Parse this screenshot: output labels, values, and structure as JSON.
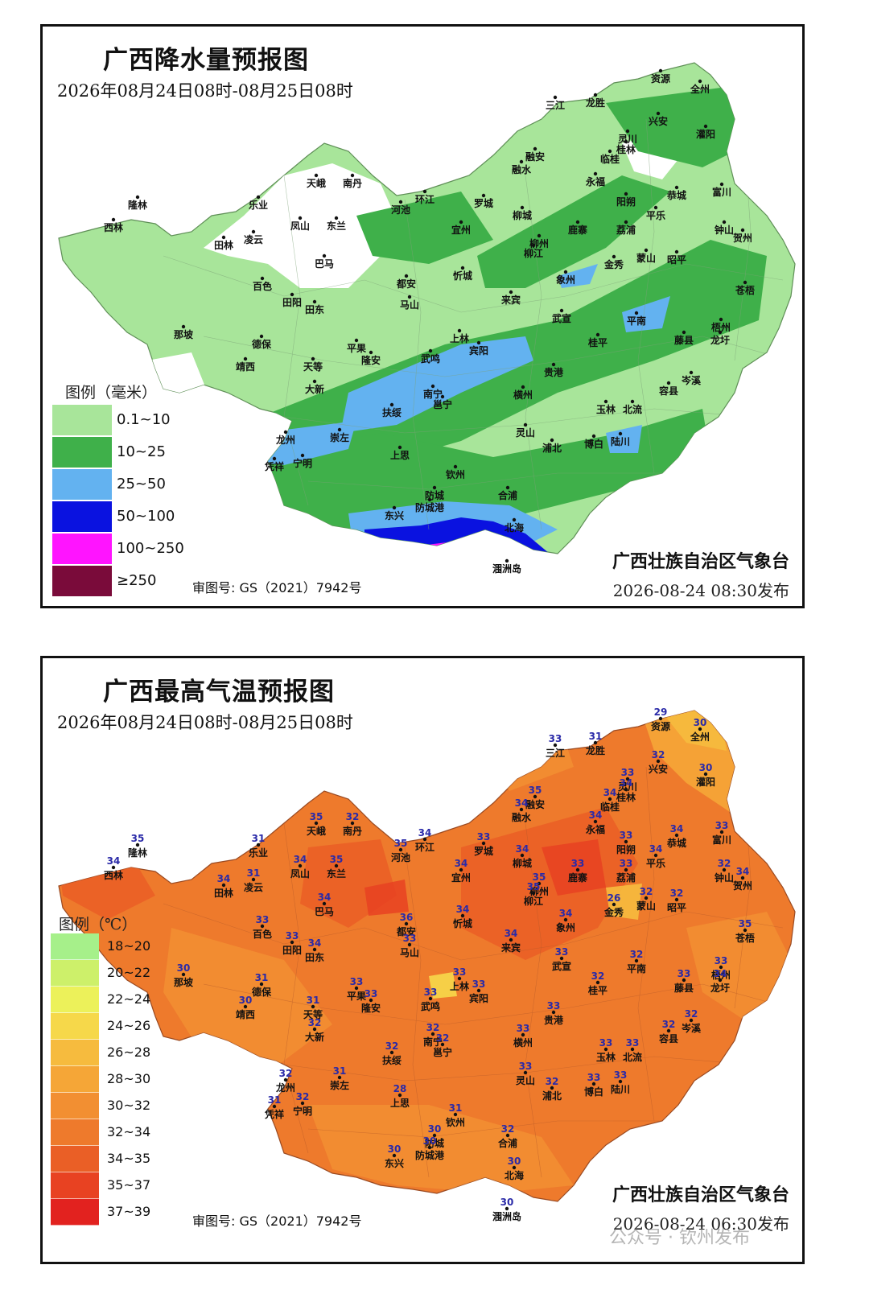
{
  "precip_map": {
    "title": "广西降水量预报图",
    "period": "2026年08月24日08时-08月25日08时",
    "legend_title": "图例（毫米）",
    "legend": [
      {
        "label": "0.1~10",
        "color": "#a8e59a"
      },
      {
        "label": "10~25",
        "color": "#3fb04a"
      },
      {
        "label": "25~50",
        "color": "#63b2f0"
      },
      {
        "label": "50~100",
        "color": "#0a12e0"
      },
      {
        "label": "100~250",
        "color": "#ff14ff"
      },
      {
        "label": "≥250",
        "color": "#7a0b3a"
      }
    ],
    "review_no": "审图号: GS（2021）7942号",
    "issuer": "广西壮族自治区气象台",
    "issued": "2026-08-24  08:30发布"
  },
  "temp_map": {
    "title": "广西最高气温预报图",
    "period": "2026年08月24日08时-08月25日08时",
    "legend_title": "图例（℃）",
    "legend": [
      {
        "label": "18~20",
        "color": "#a6f08a"
      },
      {
        "label": "20~22",
        "color": "#cdf06a"
      },
      {
        "label": "22~24",
        "color": "#ecf15a"
      },
      {
        "label": "24~26",
        "color": "#f6d84a"
      },
      {
        "label": "26~28",
        "color": "#f6bb3e"
      },
      {
        "label": "28~30",
        "color": "#f5a637"
      },
      {
        "label": "30~32",
        "color": "#f28f32"
      },
      {
        "label": "32~34",
        "color": "#ee7a2c"
      },
      {
        "label": "34~35",
        "color": "#ea5f26"
      },
      {
        "label": "35~37",
        "color": "#e84222"
      },
      {
        "label": "37~39",
        "color": "#e2221f"
      }
    ],
    "review_no": "审图号: GS（2021）7942号",
    "issuer": "广西壮族自治区气象台",
    "issued": "2026-08-24  06:30发布",
    "watermark": "公众号 · 钦州发布"
  },
  "cities": [
    {
      "name": "资源"
    },
    {
      "name": "全州"
    },
    {
      "name": "三江"
    },
    {
      "name": "龙胜"
    },
    {
      "name": "兴安"
    },
    {
      "name": "灌阳"
    },
    {
      "name": "灵川"
    },
    {
      "name": "桂林"
    },
    {
      "name": "临桂"
    },
    {
      "name": "融安"
    },
    {
      "name": "融水"
    },
    {
      "name": "永福"
    },
    {
      "name": "天峨"
    },
    {
      "name": "南丹"
    },
    {
      "name": "环江"
    },
    {
      "name": "罗城"
    },
    {
      "name": "富川"
    },
    {
      "name": "恭城"
    },
    {
      "name": "隆林"
    },
    {
      "name": "乐业"
    },
    {
      "name": "河池"
    },
    {
      "name": "阳朔"
    },
    {
      "name": "西林"
    },
    {
      "name": "凤山"
    },
    {
      "name": "东兰"
    },
    {
      "name": "宜州"
    },
    {
      "name": "柳城"
    },
    {
      "name": "鹿寨"
    },
    {
      "name": "荔浦"
    },
    {
      "name": "平乐"
    },
    {
      "name": "钟山"
    },
    {
      "name": "贺州"
    },
    {
      "name": "田林"
    },
    {
      "name": "凌云"
    },
    {
      "name": "柳州"
    },
    {
      "name": "巴马"
    },
    {
      "name": "柳江"
    },
    {
      "name": "金秀"
    },
    {
      "name": "蒙山"
    },
    {
      "name": "昭平"
    },
    {
      "name": "百色"
    },
    {
      "name": "都安"
    },
    {
      "name": "忻城"
    },
    {
      "name": "象州"
    },
    {
      "name": "苍梧"
    },
    {
      "name": "田阳"
    },
    {
      "name": "田东"
    },
    {
      "name": "马山"
    },
    {
      "name": "来宾"
    },
    {
      "name": "武宣"
    },
    {
      "name": "平南"
    },
    {
      "name": "那坡"
    },
    {
      "name": "德保"
    },
    {
      "name": "平果"
    },
    {
      "name": "上林"
    },
    {
      "name": "宾阳"
    },
    {
      "name": "桂平"
    },
    {
      "name": "藤县"
    },
    {
      "name": "梧州"
    },
    {
      "name": "龙圩"
    },
    {
      "name": "靖西"
    },
    {
      "name": "隆安"
    },
    {
      "name": "武鸣"
    },
    {
      "name": "天等"
    },
    {
      "name": "贵港"
    },
    {
      "name": "岑溪"
    },
    {
      "name": "大新"
    },
    {
      "name": "南宁"
    },
    {
      "name": "邕宁"
    },
    {
      "name": "横州"
    },
    {
      "name": "容县"
    },
    {
      "name": "扶绥"
    },
    {
      "name": "玉林"
    },
    {
      "name": "北流"
    },
    {
      "name": "龙州"
    },
    {
      "name": "崇左"
    },
    {
      "name": "灵山"
    },
    {
      "name": "浦北"
    },
    {
      "name": "博白"
    },
    {
      "name": "陆川"
    },
    {
      "name": "凭祥"
    },
    {
      "name": "宁明"
    },
    {
      "name": "上思"
    },
    {
      "name": "钦州"
    },
    {
      "name": "防城"
    },
    {
      "name": "合浦"
    },
    {
      "name": "东兴"
    },
    {
      "name": "防城港"
    },
    {
      "name": "北海"
    },
    {
      "name": "涠洲岛"
    }
  ],
  "temp_values": [
    {
      "v": "29"
    },
    {
      "v": "30"
    },
    {
      "v": "33"
    },
    {
      "v": "31"
    },
    {
      "v": "32"
    },
    {
      "v": "30"
    },
    {
      "v": "33"
    },
    {
      "v": "34"
    },
    {
      "v": "34"
    },
    {
      "v": "35"
    },
    {
      "v": "34"
    },
    {
      "v": "34"
    },
    {
      "v": "35"
    },
    {
      "v": "32"
    },
    {
      "v": "34"
    },
    {
      "v": "33"
    },
    {
      "v": "33"
    },
    {
      "v": "34"
    },
    {
      "v": "35"
    },
    {
      "v": "31"
    },
    {
      "v": "35"
    },
    {
      "v": "33"
    },
    {
      "v": "34"
    },
    {
      "v": "34"
    },
    {
      "v": "35"
    },
    {
      "v": "34"
    },
    {
      "v": "34"
    },
    {
      "v": "33"
    },
    {
      "v": "33"
    },
    {
      "v": "34"
    },
    {
      "v": "32"
    },
    {
      "v": "34"
    },
    {
      "v": "34"
    },
    {
      "v": "31"
    },
    {
      "v": "35"
    },
    {
      "v": "34"
    },
    {
      "v": "35"
    },
    {
      "v": "26"
    },
    {
      "v": "32"
    },
    {
      "v": "32"
    },
    {
      "v": "33"
    },
    {
      "v": "36"
    },
    {
      "v": "34"
    },
    {
      "v": "34"
    },
    {
      "v": "35"
    },
    {
      "v": "33"
    },
    {
      "v": "34"
    },
    {
      "v": "33"
    },
    {
      "v": "34"
    },
    {
      "v": "33"
    },
    {
      "v": "32"
    },
    {
      "v": "30"
    },
    {
      "v": "31"
    },
    {
      "v": "33"
    },
    {
      "v": "33"
    },
    {
      "v": "33"
    },
    {
      "v": "32"
    },
    {
      "v": "33"
    },
    {
      "v": "33"
    },
    {
      "v": "34"
    },
    {
      "v": "30"
    },
    {
      "v": "33"
    },
    {
      "v": "33"
    },
    {
      "v": "31"
    },
    {
      "v": "33"
    },
    {
      "v": "32"
    },
    {
      "v": "32"
    },
    {
      "v": "32"
    },
    {
      "v": "32"
    },
    {
      "v": "33"
    },
    {
      "v": "32"
    },
    {
      "v": "32"
    },
    {
      "v": "33"
    },
    {
      "v": "33"
    },
    {
      "v": "32"
    },
    {
      "v": "31"
    },
    {
      "v": "33"
    },
    {
      "v": "32"
    },
    {
      "v": "33"
    },
    {
      "v": "33"
    },
    {
      "v": "31"
    },
    {
      "v": "32"
    },
    {
      "v": "28"
    },
    {
      "v": "31"
    },
    {
      "v": "30"
    },
    {
      "v": "32"
    },
    {
      "v": "30"
    },
    {
      "v": "30"
    },
    {
      "v": "30"
    },
    {
      "v": "30"
    }
  ]
}
